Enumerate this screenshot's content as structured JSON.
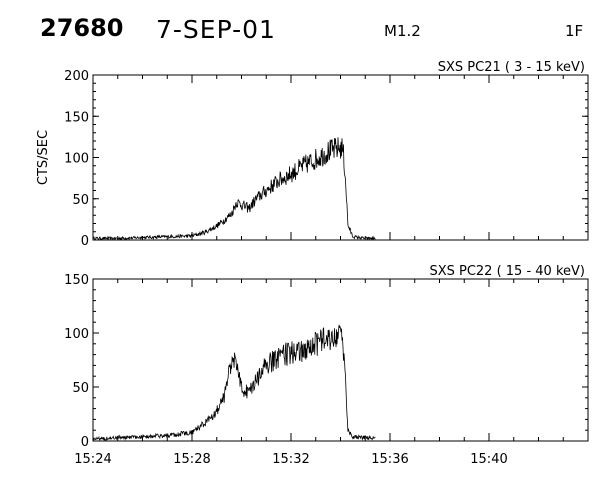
{
  "header": {
    "flare_number": "27680",
    "date": "7-SEP-01",
    "goes_class": "M1.2",
    "optical_class": "1F"
  },
  "chart_data": [
    {
      "type": "line",
      "title": "SXS PC21  (  3 - 15 keV)",
      "ylabel": "CTS/SEC",
      "xlabel": "",
      "ylim": [
        0,
        200
      ],
      "yticks": [
        0,
        50,
        100,
        150,
        200
      ],
      "xlim": [
        "15:24",
        "15:44"
      ],
      "xticks": [
        "15:24",
        "15:28",
        "15:32",
        "15:36",
        "15:40"
      ],
      "show_x_tick_labels": false,
      "series": [
        {
          "x": [
            "15:24",
            "15:25",
            "15:26",
            "15:27",
            "15:28",
            "15:28.5",
            "15:29",
            "15:29.3",
            "15:29.6",
            "15:29.8",
            "15:30",
            "15:30.3",
            "15:30.6",
            "15:31",
            "15:31.5",
            "15:32",
            "15:32.5",
            "15:33",
            "15:33.5",
            "15:34",
            "15:34.1",
            "15:34.2",
            "15:34.3",
            "15:34.5",
            "15:35",
            "15:35.4"
          ],
          "values": [
            2,
            2,
            3,
            4,
            5,
            9,
            17,
            24,
            32,
            46,
            43,
            38,
            50,
            60,
            72,
            80,
            90,
            98,
            107,
            112,
            110,
            75,
            18,
            4,
            2,
            2
          ]
        }
      ]
    },
    {
      "type": "line",
      "title": "SXS PC22  ( 15 - 40 keV)",
      "ylabel": "",
      "xlabel": "",
      "ylim": [
        0,
        150
      ],
      "yticks": [
        0,
        50,
        100,
        150
      ],
      "xlim": [
        "15:24",
        "15:44"
      ],
      "xticks": [
        "15:24",
        "15:28",
        "15:32",
        "15:36",
        "15:40"
      ],
      "show_x_tick_labels": true,
      "series": [
        {
          "x": [
            "15:24",
            "15:25",
            "15:26",
            "15:27",
            "15:28",
            "15:28.5",
            "15:29",
            "15:29.3",
            "15:29.5",
            "15:29.7",
            "15:29.9",
            "15:30.1",
            "15:30.3",
            "15:30.6",
            "15:31",
            "15:31.5",
            "15:32",
            "15:32.5",
            "15:33",
            "15:33.5",
            "15:34",
            "15:34.1",
            "15:34.2",
            "15:34.3",
            "15:34.5",
            "15:35",
            "15:35.4"
          ],
          "values": [
            2,
            3,
            4,
            5,
            8,
            16,
            28,
            40,
            62,
            78,
            58,
            48,
            45,
            55,
            70,
            78,
            82,
            85,
            90,
            95,
            95,
            88,
            60,
            10,
            4,
            3,
            3
          ]
        }
      ]
    }
  ]
}
